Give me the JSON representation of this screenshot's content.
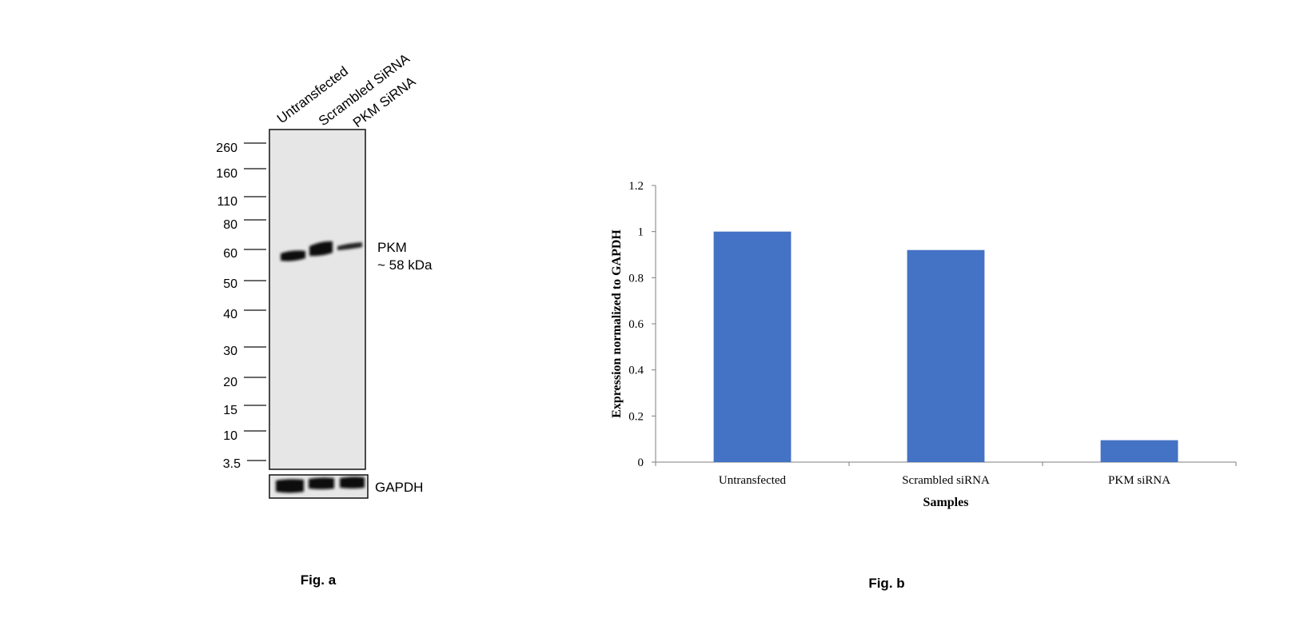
{
  "figure_a": {
    "caption": "Fig. a",
    "lanes": [
      "Untransfected",
      "Scrambled SiRNA",
      "PKM SiRNA"
    ],
    "markers": [
      "260",
      "160",
      "110",
      "80",
      "60",
      "50",
      "40",
      "30",
      "20",
      "15",
      "10",
      "3.5"
    ],
    "band_label_line1": "PKM",
    "band_label_line2": "~ 58 kDa",
    "loading_control": "GAPDH"
  },
  "figure_b": {
    "caption": "Fig. b"
  },
  "chart_data": {
    "type": "bar",
    "title": "",
    "categories": [
      "Untransfected",
      "Scrambled siRNA",
      "PKM siRNA"
    ],
    "series": [
      {
        "name": "Expression",
        "values": [
          1.0,
          0.92,
          0.095
        ],
        "color": "#4472C4"
      }
    ],
    "xlabel": "Samples",
    "ylabel": "Expression normalized to GAPDH",
    "ylim": [
      0,
      1.2
    ],
    "yticks": [
      "0",
      "0.2",
      "0.4",
      "0.6",
      "0.8",
      "1",
      "1.2"
    ],
    "grid": false,
    "legend": "none"
  }
}
